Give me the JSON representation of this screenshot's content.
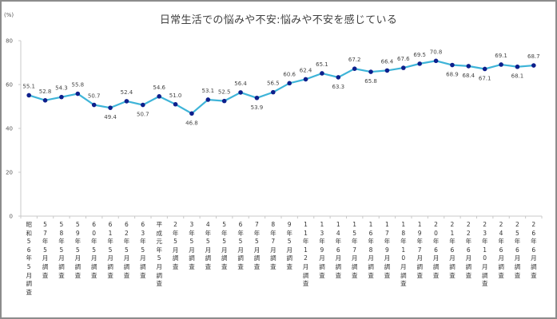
{
  "chart_data": {
    "type": "line",
    "title": "日常生活での悩みや不安:悩みや不安を感じている",
    "ylabel": "(%)",
    "xlabel": "",
    "ylim": [
      0,
      80
    ],
    "yticks": [
      0,
      20,
      40,
      60,
      80
    ],
    "grid": false,
    "legend": null,
    "categories": [
      "昭和56年5月調査",
      "57年5月調査",
      "58年5月調査",
      "59年5月調査",
      "60年5月調査",
      "61年5月調査",
      "62年5月調査",
      "63年5月調査",
      "平成元年5月調査",
      "2年5月調査",
      "3年5月調査",
      "4年5月調査",
      "5年5月調査",
      "6年5月調査",
      "7年5月調査",
      "8年7月調査",
      "9年5月調査",
      "11年12月調査",
      "13年9月調査",
      "14年6月調査",
      "15年7月調査",
      "16年8月調査",
      "17年9月調査",
      "18年10月調査",
      "19年7月調査",
      "20年6月調査",
      "21年6月調査",
      "22年6月調査",
      "23年10月調査",
      "24年6月調査",
      "25年6月調査",
      "26年6月調査"
    ],
    "series": [
      {
        "name": "悩みや不安を感じている",
        "color": "#3eb4d8",
        "marker_color": "#0d1f8c",
        "values": [
          55.1,
          52.8,
          54.3,
          55.8,
          50.7,
          49.4,
          52.4,
          50.7,
          54.6,
          51.0,
          46.8,
          53.1,
          52.5,
          56.4,
          53.9,
          56.5,
          60.6,
          62.4,
          65.1,
          63.3,
          67.2,
          65.8,
          66.4,
          67.6,
          69.5,
          70.8,
          68.9,
          68.4,
          67.1,
          69.1,
          68.1,
          68.7
        ],
        "label_pos": [
          "above",
          "above",
          "above",
          "above",
          "above",
          "below",
          "above",
          "below",
          "above",
          "above",
          "below",
          "above",
          "above",
          "above",
          "below",
          "above",
          "above",
          "above",
          "above",
          "below",
          "above",
          "below",
          "above",
          "above",
          "above",
          "above",
          "below",
          "below",
          "below",
          "above",
          "below",
          "above"
        ]
      }
    ]
  },
  "x_labels": [
    "昭和56年5月調査",
    "57年5月調査",
    "58年5月調査",
    "59年5月調査",
    "60年5月調査",
    "61年5月調査",
    "62年5月調査",
    "63年5月調査",
    "平成元年5月調査",
    "2年5月調査",
    "3年5月調査",
    "4年5月調査",
    "5年5月調査",
    "6年5月調査",
    "7年5月調査",
    "8年7月調査",
    "9年5月調査",
    "11年12月調査",
    "13年9月調査",
    "14年6月調査",
    "15年7月調査",
    "16年8月調査",
    "17年9月調査",
    "18年10月調査",
    "19年7月調査",
    "20年6月調査",
    "21年6月調査",
    "22年6月調査",
    "23年10月調査",
    "24年6月調査",
    "25年6月調査",
    "26年6月調査"
  ]
}
